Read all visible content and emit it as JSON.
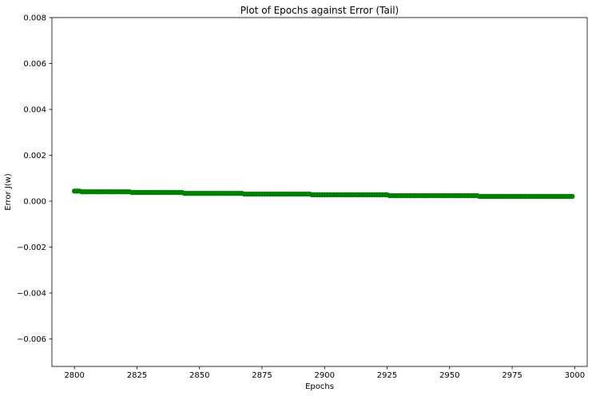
{
  "chart_data": {
    "type": "scatter",
    "title": "Plot of Epochs against Error (Tail)",
    "xlabel": "Epochs",
    "ylabel": "Error J(w)",
    "xlim": [
      2791,
      3005
    ],
    "ylim": [
      -0.0072,
      0.008
    ],
    "x_ticks": [
      2800,
      2825,
      2850,
      2875,
      2900,
      2925,
      2950,
      2975,
      3000
    ],
    "x_tick_labels": [
      "2800",
      "2825",
      "2850",
      "2875",
      "2900",
      "2925",
      "2950",
      "2975",
      "3000"
    ],
    "y_ticks": [
      0.008,
      0.006,
      0.004,
      0.002,
      0.0,
      -0.002,
      -0.004,
      -0.006
    ],
    "y_tick_labels": [
      "0.008",
      "0.006",
      "0.004",
      "0.002",
      "0.000",
      "−0.002",
      "−0.004",
      "−0.006"
    ],
    "grid": false,
    "legend": "none",
    "series": [
      {
        "color": "#008000",
        "marker": "circle",
        "x_start": 2800,
        "x_end": 2999,
        "x_step": 1,
        "segments": [
          {
            "from": 2800,
            "to": 2802,
            "y": 0.00044
          },
          {
            "from": 2803,
            "to": 2822,
            "y": 0.00041
          },
          {
            "from": 2823,
            "to": 2843,
            "y": 0.00038
          },
          {
            "from": 2844,
            "to": 2867,
            "y": 0.00034
          },
          {
            "from": 2868,
            "to": 2894,
            "y": 0.00031
          },
          {
            "from": 2895,
            "to": 2925,
            "y": 0.00028
          },
          {
            "from": 2926,
            "to": 2961,
            "y": 0.00024
          },
          {
            "from": 2962,
            "to": 2999,
            "y": 0.00021
          }
        ]
      }
    ]
  }
}
